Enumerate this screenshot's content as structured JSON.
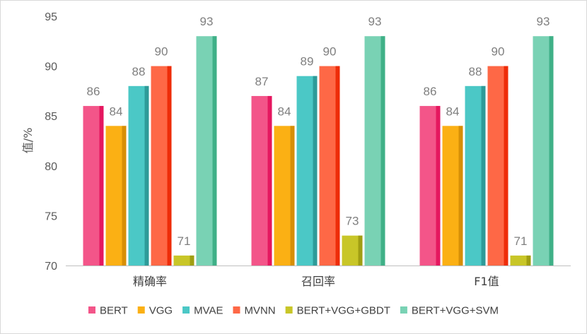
{
  "chart_data": {
    "type": "bar",
    "title": "",
    "xlabel": "",
    "ylabel": "值/%",
    "ylim": [
      70,
      95
    ],
    "yticks": [
      70,
      75,
      80,
      85,
      90,
      95
    ],
    "grid": false,
    "legend_position": "bottom",
    "categories": [
      "精确率",
      "召回率",
      "F1值"
    ],
    "series": [
      {
        "name": "BERT",
        "values": [
          86,
          87,
          86
        ],
        "color": "#f35589",
        "shade": "#e5175f"
      },
      {
        "name": "VGG",
        "values": [
          84,
          84,
          84
        ],
        "color": "#fbb014",
        "shade": "#d78f06"
      },
      {
        "name": "MVAE",
        "values": [
          88,
          89,
          88
        ],
        "color": "#4bc8c6",
        "shade": "#2e9b99"
      },
      {
        "name": "MVNN",
        "values": [
          90,
          90,
          90
        ],
        "color": "#fe6846",
        "shade": "#ee2c08"
      },
      {
        "name": "BERT+VGG+GBDT",
        "values": [
          71,
          73,
          71
        ],
        "color": "#c8c628",
        "shade": "#a09e12"
      },
      {
        "name": "BERT+VGG+SVM",
        "values": [
          93,
          93,
          93
        ],
        "color": "#79d2b4",
        "shade": "#3fb087"
      }
    ]
  }
}
